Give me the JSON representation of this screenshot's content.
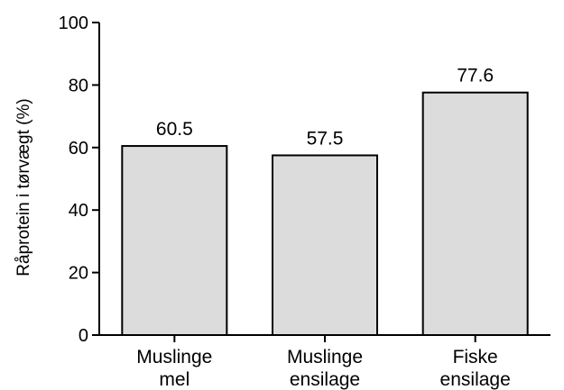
{
  "chart_data": {
    "type": "bar",
    "title": "",
    "xlabel": "",
    "ylabel": "Råprotein i tørvægt (%)",
    "categories": [
      [
        "Muslinge",
        "mel"
      ],
      [
        "Muslinge",
        "ensilage"
      ],
      [
        "Fiske",
        "ensilage"
      ]
    ],
    "values": [
      60.5,
      57.5,
      77.6
    ],
    "data_labels": [
      "60.5",
      "57.5",
      "77.6"
    ],
    "ylim": [
      0,
      100
    ],
    "yticks": [
      0,
      20,
      40,
      60,
      80,
      100
    ],
    "grid": false,
    "legend": "none",
    "colors": {
      "bar_fill": "#dcdcdc",
      "bar_stroke": "#000000",
      "axis": "#000000"
    }
  }
}
